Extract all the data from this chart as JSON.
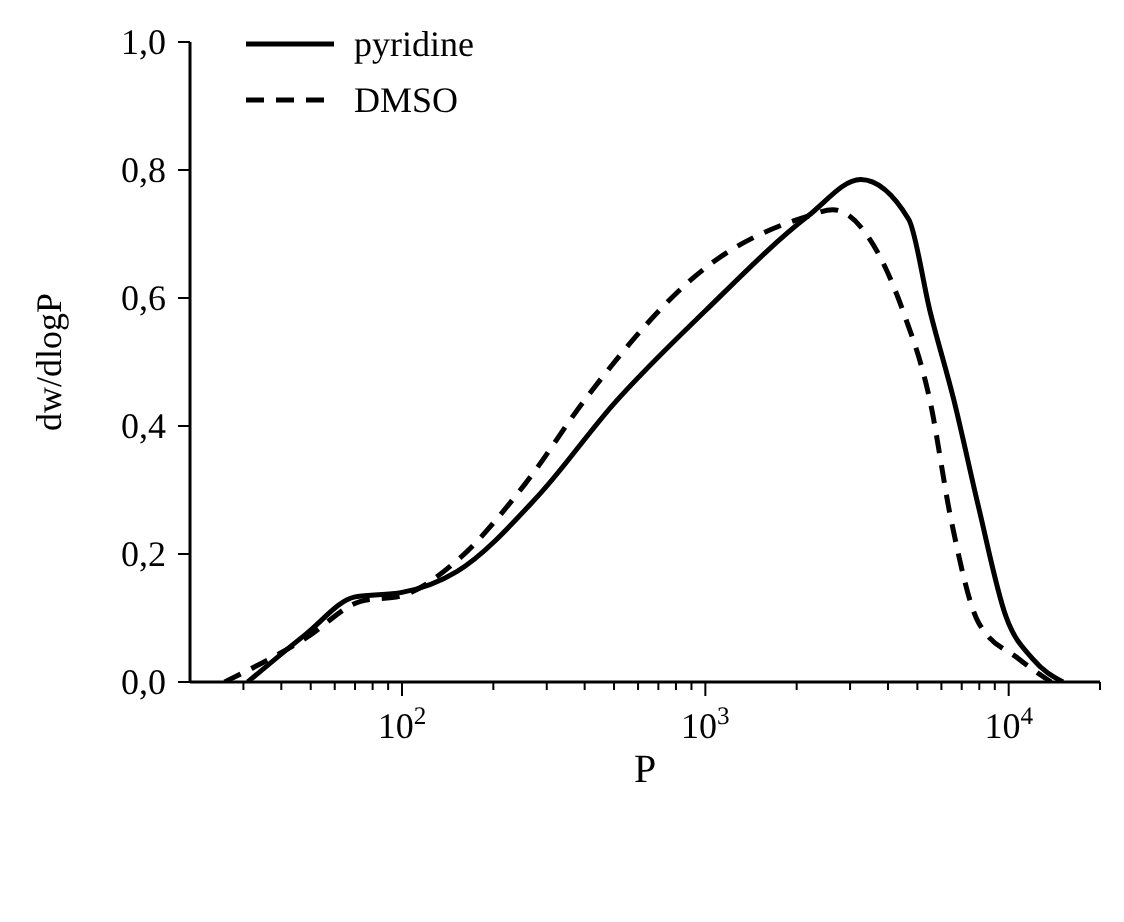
{
  "chart_data": {
    "type": "line",
    "xlabel": "P",
    "ylabel": "dw/dlogP",
    "log": "x",
    "legend": "top left",
    "marker": "none",
    "xlim": [
      20,
      20000
    ],
    "xticks": [
      {
        "value": 30,
        "label": null
      },
      {
        "value": 40,
        "label": null
      },
      {
        "value": 50,
        "label": null
      },
      {
        "value": 60,
        "label": null
      },
      {
        "value": 70,
        "label": null
      },
      {
        "value": 80,
        "label": null
      },
      {
        "value": 90,
        "label": null
      },
      {
        "value": 100,
        "label": "10$^{2}$"
      },
      {
        "value": 200,
        "label": null
      },
      {
        "value": 300,
        "label": null
      },
      {
        "value": 400,
        "label": null
      },
      {
        "value": 500,
        "label": null
      },
      {
        "value": 600,
        "label": null
      },
      {
        "value": 700,
        "label": null
      },
      {
        "value": 800,
        "label": null
      },
      {
        "value": 900,
        "label": null
      },
      {
        "value": 1000,
        "label": "10$^{3}$"
      },
      {
        "value": 2000,
        "label": null
      },
      {
        "value": 3000,
        "label": null
      },
      {
        "value": 4000,
        "label": null
      },
      {
        "value": 5000,
        "label": null
      },
      {
        "value": 6000,
        "label": null
      },
      {
        "value": 7000,
        "label": null
      },
      {
        "value": 8000,
        "label": null
      },
      {
        "value": 9000,
        "label": null
      },
      {
        "value": 10000,
        "label": "10$^{4}$"
      },
      {
        "value": 20000,
        "label": null
      }
    ],
    "ylim": [
      0,
      1
    ],
    "yticks": [
      {
        "value": 0,
        "label": "0,0"
      },
      {
        "value": 0.2,
        "label": "0,2"
      },
      {
        "value": 0.4,
        "label": "0,4"
      },
      {
        "value": 0.6,
        "label": "0,6"
      },
      {
        "value": 0.8,
        "label": "0,8"
      },
      {
        "value": 1,
        "label": "1,0"
      }
    ],
    "series": [
      {
        "name": "pyridine",
        "color": "#000000",
        "line_style": "solid",
        "x": [
          31,
          48,
          70,
          100,
          152,
          280,
          500,
          1000,
          2180,
          3250,
          4680,
          5500,
          6600,
          7950,
          9800,
          12000,
          15100
        ],
        "values": [
          0,
          0.074,
          0.133,
          0.14,
          0.173,
          0.29,
          0.435,
          0.58,
          0.728,
          0.785,
          0.723,
          0.58,
          0.44,
          0.274,
          0.102,
          0.036,
          0
        ]
      },
      {
        "name": "DMSO",
        "color": "#000000",
        "line_style": "dashed",
        "x": [
          26,
          48,
          73,
          100,
          152,
          255,
          405,
          1000,
          2180,
          2630,
          3450,
          4480,
          5500,
          6450,
          7950,
          10800,
          13800
        ],
        "values": [
          0,
          0.068,
          0.126,
          0.135,
          0.19,
          0.31,
          0.444,
          0.647,
          0.728,
          0.738,
          0.695,
          0.58,
          0.44,
          0.255,
          0.093,
          0.036,
          0
        ]
      }
    ]
  }
}
